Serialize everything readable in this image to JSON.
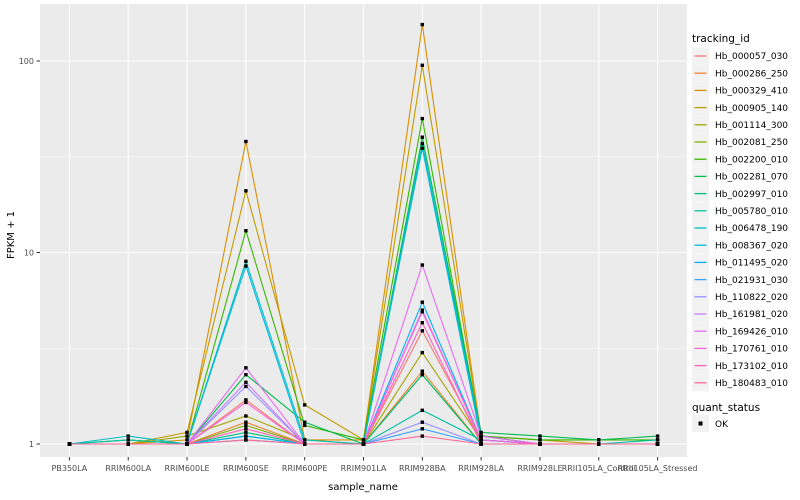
{
  "chart_data": {
    "type": "line",
    "title": "",
    "xlabel": "sample_name",
    "ylabel": "FPKM + 1",
    "y_scale": "log10",
    "ylim": [
      0.8,
      200
    ],
    "y_ticks": [
      1,
      10,
      100
    ],
    "y_minor_ticks": [
      3.162,
      31.623
    ],
    "legend_position": "right",
    "grid": "on",
    "panel_bg": "#EBEBEB",
    "grid_color": "#FFFFFF",
    "tick_color": "#333333",
    "tick_label_color": "#4D4D4D",
    "marker": "black-filled-square",
    "marker_color": "#000000",
    "categories": [
      "PB350LA",
      "RRIM600LA",
      "RRIM600LE",
      "RRIM600SE",
      "RRIM600PE",
      "RRIM901LA",
      "RRIM928BA",
      "RRIM928LA",
      "RRIM928LE",
      "RRII105LA_Control",
      "RRII105LA_Stressed"
    ],
    "series": [
      {
        "name": "Hb_000057_030",
        "color": "#F8766D",
        "values": [
          1,
          1,
          1,
          1.7,
          1,
          1,
          3.9,
          1.05,
          1,
          1,
          1
        ]
      },
      {
        "name": "Hb_000286_250",
        "color": "#EA8331",
        "values": [
          1,
          1,
          1,
          1.3,
          1,
          1,
          2.4,
          1,
          1,
          1,
          1
        ]
      },
      {
        "name": "Hb_000329_410",
        "color": "#D89000",
        "values": [
          1,
          1,
          1.05,
          38,
          1.05,
          1.05,
          155,
          1.1,
          1,
          1,
          1
        ]
      },
      {
        "name": "Hb_000905_140",
        "color": "#C09B00",
        "values": [
          1,
          1,
          1.15,
          21,
          1.6,
          1.05,
          95,
          1.1,
          1.05,
          1,
          1
        ]
      },
      {
        "name": "Hb_001114_300",
        "color": "#A3A500",
        "values": [
          1,
          1,
          1.1,
          1.4,
          1.05,
          1,
          3,
          1.05,
          1,
          1,
          1
        ]
      },
      {
        "name": "Hb_002081_250",
        "color": "#7CAE00",
        "values": [
          1,
          1,
          1,
          1.25,
          1,
          1,
          2.3,
          1,
          1,
          1,
          1
        ]
      },
      {
        "name": "Hb_002200_010",
        "color": "#39B600",
        "values": [
          1,
          1,
          1,
          13,
          1.25,
          1.05,
          50,
          1.1,
          1.05,
          1.05,
          1.05
        ]
      },
      {
        "name": "Hb_002281_070",
        "color": "#00BB4E",
        "values": [
          1,
          1.05,
          1,
          2.3,
          1.3,
          1,
          40,
          1.15,
          1.1,
          1.05,
          1.1
        ]
      },
      {
        "name": "Hb_002997_010",
        "color": "#00BF7D",
        "values": [
          1,
          1,
          1,
          1.15,
          1,
          1,
          2.3,
          1,
          1,
          1,
          1
        ]
      },
      {
        "name": "Hb_005780_010",
        "color": "#00C1A3",
        "values": [
          1,
          1.05,
          1,
          1.1,
          1,
          1,
          1.5,
          1.05,
          1,
          1,
          1.05
        ]
      },
      {
        "name": "Hb_006478_190",
        "color": "#00BFC4",
        "values": [
          1,
          1.1,
          1,
          9,
          1.05,
          1,
          37,
          1.1,
          1,
          1,
          1
        ]
      },
      {
        "name": "Hb_008367_020",
        "color": "#00BAE0",
        "values": [
          1,
          1,
          1,
          8.5,
          1,
          1,
          35,
          1.05,
          1,
          1,
          1
        ]
      },
      {
        "name": "Hb_011495_020",
        "color": "#00B0F6",
        "values": [
          1,
          1,
          1,
          1.1,
          1,
          1,
          5.5,
          1.05,
          1,
          1,
          1
        ]
      },
      {
        "name": "Hb_021931_030",
        "color": "#35A2FF",
        "values": [
          1,
          1,
          1,
          1.05,
          1,
          1,
          1.2,
          1,
          1,
          1,
          1
        ]
      },
      {
        "name": "Hb_110822_020",
        "color": "#9590FF",
        "values": [
          1,
          1,
          1,
          2,
          1,
          1,
          1.3,
          1,
          1,
          1,
          1
        ]
      },
      {
        "name": "Hb_161981_020",
        "color": "#C77CFF",
        "values": [
          1,
          1,
          1,
          2.1,
          1,
          1,
          5,
          1.05,
          1,
          1,
          1
        ]
      },
      {
        "name": "Hb_169426_010",
        "color": "#E76BF3",
        "values": [
          1,
          1,
          1,
          2.5,
          1,
          1,
          8.6,
          1.1,
          1,
          1,
          1
        ]
      },
      {
        "name": "Hb_170761_010",
        "color": "#FA62DB",
        "values": [
          1,
          1,
          1,
          1.65,
          1,
          1,
          4.9,
          1.05,
          1,
          1,
          1
        ]
      },
      {
        "name": "Hb_173102_010",
        "color": "#FF62BC",
        "values": [
          1,
          1,
          1,
          1.2,
          1,
          1,
          4.3,
          1,
          1,
          1,
          1
        ]
      },
      {
        "name": "Hb_180483_010",
        "color": "#FF6A98",
        "values": [
          1,
          1,
          1,
          1.05,
          1,
          1,
          1.1,
          1,
          1,
          1,
          1
        ]
      }
    ],
    "legend": {
      "tracking_title": "tracking_id",
      "quant_title": "quant_status",
      "quant_label": "OK",
      "key_bg": "#F2F2F2"
    }
  }
}
